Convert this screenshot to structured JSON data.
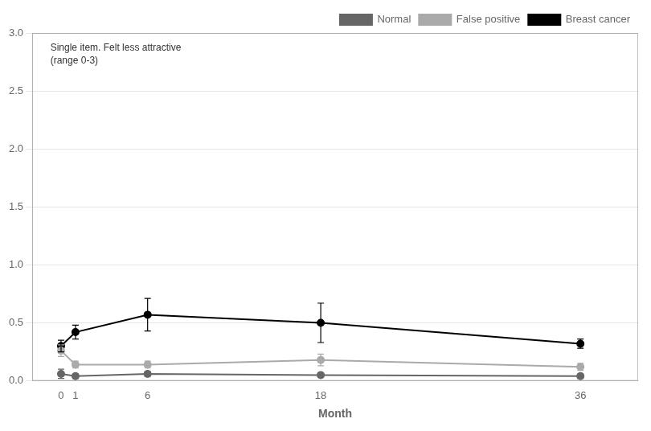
{
  "chart_data": {
    "type": "line",
    "x": [
      0,
      1,
      6,
      18,
      36
    ],
    "xlabel": "Month",
    "annotation": "Single item. Felt less attractive\n(range 0-3)",
    "series": [
      {
        "name": "Normal",
        "color": "#666666",
        "marker": "circle",
        "values": [
          0.06,
          0.04,
          0.06,
          0.05,
          0.04
        ],
        "yerr": [
          0.04,
          0.02,
          0.02,
          0.02,
          0.02
        ]
      },
      {
        "name": "False positive",
        "color": "#aaaaaa",
        "marker": "circle",
        "values": [
          0.26,
          0.14,
          0.14,
          0.18,
          0.12
        ],
        "yerr": [
          0.05,
          0.03,
          0.03,
          0.05,
          0.03
        ]
      },
      {
        "name": "Breast cancer",
        "color": "#000000",
        "marker": "circle",
        "values": [
          0.3,
          0.42,
          0.57,
          0.5,
          0.32
        ],
        "yerr": [
          0.05,
          0.06,
          0.14,
          0.17,
          0.04
        ]
      }
    ],
    "xlim": [
      -2,
      40
    ],
    "xticks": [
      0,
      1,
      6,
      18,
      36
    ],
    "ylim": [
      0,
      3
    ],
    "yticks": [
      {
        "value": 0,
        "label": "0.0"
      },
      0.5,
      {
        "value": 1,
        "label": "1.0"
      },
      1.5,
      {
        "value": 2,
        "label": "2.0"
      },
      2.5,
      {
        "value": 3,
        "label": "3.0"
      }
    ],
    "grid": "y",
    "legend": "upper right"
  }
}
